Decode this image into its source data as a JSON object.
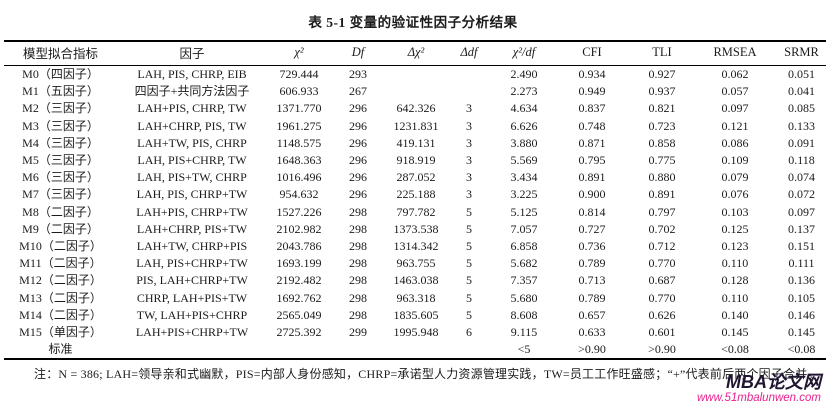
{
  "colors": {
    "text": "#1b1b1b",
    "watermark_brand": "#211531",
    "watermark_url": "#e8218e"
  },
  "title": "表 5-1 变量的验证性因子分析结果",
  "table": {
    "headers": [
      "模型拟合指标",
      "因子",
      "χ²",
      "Df",
      "Δχ²",
      "Δdf",
      "χ²/df",
      "CFI",
      "TLI",
      "RMSEA",
      "SRMR"
    ],
    "rows": [
      [
        "M0（四因子）",
        "LAH, PIS, CHRP, EIB",
        "729.444",
        "293",
        "",
        "",
        "2.490",
        "0.934",
        "0.927",
        "0.062",
        "0.051"
      ],
      [
        "M1（五因子）",
        "四因子+共同方法因子",
        "606.933",
        "267",
        "",
        "",
        "2.273",
        "0.949",
        "0.937",
        "0.057",
        "0.041"
      ],
      [
        "M2（三因子）",
        "LAH+PIS, CHRP, TW",
        "1371.770",
        "296",
        "642.326",
        "3",
        "4.634",
        "0.837",
        "0.821",
        "0.097",
        "0.085"
      ],
      [
        "M3（三因子）",
        "LAH+CHRP, PIS, TW",
        "1961.275",
        "296",
        "1231.831",
        "3",
        "6.626",
        "0.748",
        "0.723",
        "0.121",
        "0.133"
      ],
      [
        "M4（三因子）",
        "LAH+TW, PIS, CHRP",
        "1148.575",
        "296",
        "419.131",
        "3",
        "3.880",
        "0.871",
        "0.858",
        "0.086",
        "0.091"
      ],
      [
        "M5（三因子）",
        "LAH, PIS+CHRP, TW",
        "1648.363",
        "296",
        "918.919",
        "3",
        "5.569",
        "0.795",
        "0.775",
        "0.109",
        "0.118"
      ],
      [
        "M6（三因子）",
        "LAH, PIS+TW, CHRP",
        "1016.496",
        "296",
        "287.052",
        "3",
        "3.434",
        "0.891",
        "0.880",
        "0.079",
        "0.074"
      ],
      [
        "M7（三因子）",
        "LAH, PIS, CHRP+TW",
        "954.632",
        "296",
        "225.188",
        "3",
        "3.225",
        "0.900",
        "0.891",
        "0.076",
        "0.072"
      ],
      [
        "M8（二因子）",
        "LAH+PIS, CHRP+TW",
        "1527.226",
        "298",
        "797.782",
        "5",
        "5.125",
        "0.814",
        "0.797",
        "0.103",
        "0.097"
      ],
      [
        "M9（二因子）",
        "LAH+CHRP, PIS+TW",
        "2102.982",
        "298",
        "1373.538",
        "5",
        "7.057",
        "0.727",
        "0.702",
        "0.125",
        "0.137"
      ],
      [
        "M10（二因子）",
        "LAH+TW, CHRP+PIS",
        "2043.786",
        "298",
        "1314.342",
        "5",
        "6.858",
        "0.736",
        "0.712",
        "0.123",
        "0.151"
      ],
      [
        "M11（二因子）",
        "LAH, PIS+CHRP+TW",
        "1693.199",
        "298",
        "963.755",
        "5",
        "5.682",
        "0.789",
        "0.770",
        "0.110",
        "0.111"
      ],
      [
        "M12（二因子）",
        "PIS, LAH+CHRP+TW",
        "2192.482",
        "298",
        "1463.038",
        "5",
        "7.357",
        "0.713",
        "0.687",
        "0.128",
        "0.136"
      ],
      [
        "M13（二因子）",
        "CHRP, LAH+PIS+TW",
        "1692.762",
        "298",
        "963.318",
        "5",
        "5.680",
        "0.789",
        "0.770",
        "0.110",
        "0.105"
      ],
      [
        "M14（二因子）",
        "TW, LAH+PIS+CHRP",
        "2565.049",
        "298",
        "1835.605",
        "5",
        "8.608",
        "0.657",
        "0.626",
        "0.140",
        "0.146"
      ],
      [
        "M15（单因子）",
        "LAH+PIS+CHRP+TW",
        "2725.392",
        "299",
        "1995.948",
        "6",
        "9.115",
        "0.633",
        "0.601",
        "0.145",
        "0.145"
      ],
      [
        "标准",
        "",
        "",
        "",
        "",
        "",
        "<5",
        ">0.90",
        ">0.90",
        "<0.08",
        "<0.08"
      ]
    ]
  },
  "note": "注：N = 386; LAH=领导亲和式幽默，PIS=内部人身份感知，CHRP=承诺型人力资源管理实践，TW=员工工作旺盛感；“+”代表前后两个因子合并。",
  "watermark": {
    "name": "MBA论文网",
    "url": "www.51mbalunwen.com"
  }
}
